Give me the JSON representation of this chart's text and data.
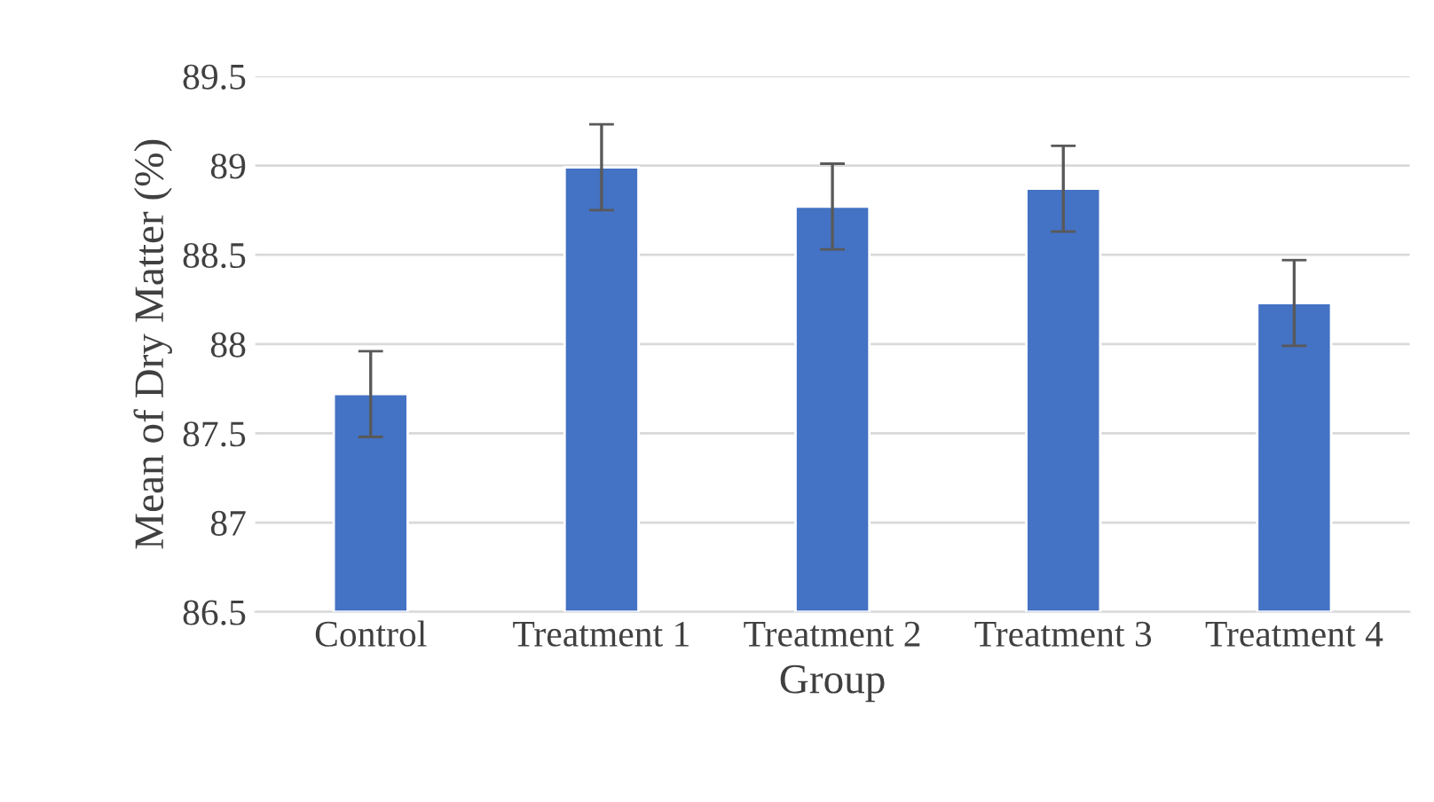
{
  "chart_data": {
    "type": "bar",
    "xlabel": "Group",
    "ylabel": "Mean of Dry Matter (%)",
    "categories": [
      "Control",
      "Treatment 1",
      "Treatment 2",
      "Treatment 3",
      "Treatment 4"
    ],
    "values": [
      87.72,
      88.99,
      88.77,
      88.87,
      88.23
    ],
    "errors": [
      0.24,
      0.24,
      0.24,
      0.24,
      0.24
    ],
    "color": "#4472c4",
    "ylim": [
      86.5,
      89.5
    ],
    "yticks": [
      {
        "value": 86.5,
        "label": "86.5"
      },
      {
        "value": 87,
        "label": "87"
      },
      {
        "value": 87.5,
        "label": "87.5"
      },
      {
        "value": 88,
        "label": "88"
      },
      {
        "value": 88.5,
        "label": "88.5"
      },
      {
        "value": 89,
        "label": "89"
      },
      {
        "value": 89.5,
        "label": "89.5"
      }
    ],
    "grid": "y",
    "legend": false
  }
}
